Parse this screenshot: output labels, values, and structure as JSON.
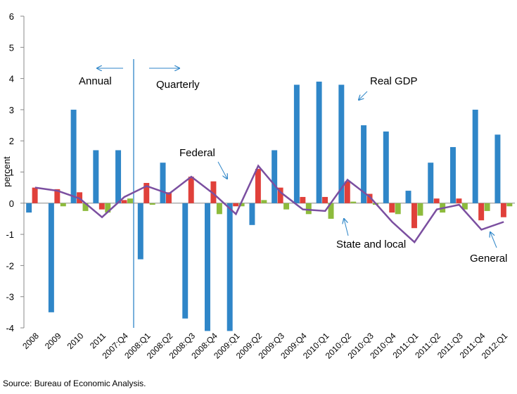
{
  "chart_data": {
    "type": "bar-line",
    "y_label": "percent",
    "source": "Source:  Bureau of Economic Analysis.",
    "categories": [
      "2008",
      "2009",
      "2010",
      "2011",
      "2007:Q4",
      "2008:Q1",
      "2008:Q2",
      "2008:Q3",
      "2008:Q4",
      "2009:Q1",
      "2009:Q2",
      "2009:Q3",
      "2009:Q4",
      "2010:Q1",
      "2010:Q2",
      "2010:Q3",
      "2010:Q4",
      "2011:Q1",
      "2011:Q2",
      "2011:Q3",
      "2011:Q4",
      "2012:Q1"
    ],
    "series": [
      {
        "name": "Real GDP",
        "color": "#2f86c8",
        "kind": "bar",
        "values": [
          -0.3,
          -3.5,
          3.0,
          1.7,
          1.7,
          -1.8,
          1.3,
          -3.7,
          -4.1,
          -4.1,
          -0.7,
          1.7,
          3.8,
          3.9,
          3.8,
          2.5,
          2.3,
          0.4,
          1.3,
          1.8,
          3.0,
          2.2
        ]
      },
      {
        "name": "Federal",
        "color": "#e0403a",
        "kind": "bar",
        "values": [
          0.5,
          0.45,
          0.35,
          -0.2,
          0.1,
          0.65,
          0.35,
          0.85,
          0.7,
          -0.1,
          1.1,
          0.5,
          0.2,
          0.2,
          0.7,
          0.3,
          -0.3,
          -0.8,
          0.15,
          0.15,
          -0.55,
          -0.45
        ]
      },
      {
        "name": "State and local",
        "color": "#8dbb3c",
        "kind": "bar",
        "values": [
          0,
          -0.1,
          -0.25,
          -0.3,
          0.15,
          -0.05,
          0,
          0,
          -0.35,
          -0.1,
          0.1,
          -0.2,
          -0.35,
          -0.5,
          0.05,
          -0.05,
          -0.35,
          -0.4,
          -0.3,
          -0.2,
          -0.25,
          -0.1
        ]
      },
      {
        "name": "General",
        "color": "#7b4fa0",
        "kind": "line",
        "values": [
          0.5,
          0.4,
          0.15,
          -0.45,
          0.2,
          0.55,
          0.3,
          0.85,
          0.3,
          -0.35,
          1.2,
          0.35,
          -0.2,
          -0.25,
          0.75,
          0.2,
          -0.6,
          -1.25,
          -0.2,
          -0.05,
          -0.85,
          -0.6
        ]
      }
    ],
    "period_labels": [
      "Annual",
      "Quarterly"
    ],
    "ylim": [
      -4,
      6
    ],
    "yticks": [
      -4,
      -3,
      -2,
      -1,
      0,
      1,
      2,
      3,
      4,
      5,
      6
    ]
  }
}
